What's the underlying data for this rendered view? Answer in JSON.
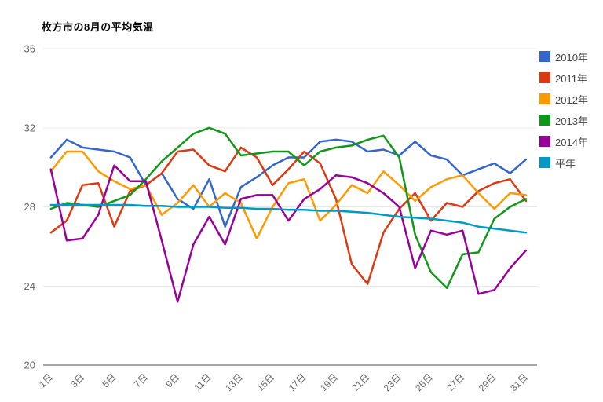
{
  "title": "枚方市の8月の平均気温",
  "chart_data": {
    "type": "line",
    "title": "枚方市の8月の平均気温",
    "xlabel": "",
    "ylabel": "",
    "x": [
      1,
      2,
      3,
      4,
      5,
      6,
      7,
      8,
      9,
      10,
      11,
      12,
      13,
      14,
      15,
      16,
      17,
      18,
      19,
      20,
      21,
      22,
      23,
      24,
      25,
      26,
      27,
      28,
      29,
      30,
      31
    ],
    "x_tick_labels": [
      "1日",
      "3日",
      "5日",
      "7日",
      "9日",
      "11日",
      "13日",
      "15日",
      "17日",
      "19日",
      "21日",
      "23日",
      "25日",
      "27日",
      "29日",
      "31日"
    ],
    "x_tick_days": [
      1,
      3,
      5,
      7,
      9,
      11,
      13,
      15,
      17,
      19,
      21,
      23,
      25,
      27,
      29,
      31
    ],
    "ylim": [
      20,
      36
    ],
    "y_ticks": [
      36,
      32,
      28,
      24,
      20
    ],
    "grid": true,
    "legend_position": "right",
    "series": [
      {
        "name": "2010年",
        "color": "#3366CC",
        "values": [
          30.5,
          31.4,
          31.0,
          30.9,
          30.8,
          30.5,
          29.1,
          29.7,
          28.4,
          27.9,
          29.4,
          27.0,
          29.0,
          29.5,
          30.1,
          30.5,
          30.5,
          31.3,
          31.4,
          31.3,
          30.8,
          30.9,
          30.6,
          31.3,
          30.6,
          30.4,
          29.6,
          29.9,
          30.2,
          29.7,
          30.4
        ]
      },
      {
        "name": "2011年",
        "color": "#DC3912",
        "values": [
          26.7,
          27.3,
          29.1,
          29.2,
          27.0,
          28.8,
          29.1,
          29.7,
          30.8,
          30.9,
          30.1,
          29.8,
          31.0,
          30.5,
          29.1,
          29.9,
          30.8,
          30.2,
          28.4,
          25.1,
          24.1,
          26.7,
          27.9,
          28.7,
          27.3,
          28.2,
          28.0,
          28.8,
          29.2,
          29.4,
          28.3
        ]
      },
      {
        "name": "2012年",
        "color": "#FF9900",
        "values": [
          29.8,
          30.8,
          30.8,
          29.8,
          29.3,
          28.9,
          29.1,
          27.6,
          28.2,
          29.1,
          28.0,
          28.7,
          28.2,
          26.4,
          28.0,
          29.2,
          29.4,
          27.3,
          28.1,
          29.1,
          28.7,
          29.8,
          29.1,
          28.3,
          29.0,
          29.4,
          29.6,
          28.7,
          27.9,
          28.7,
          28.6
        ]
      },
      {
        "name": "2013年",
        "color": "#109618",
        "values": [
          27.9,
          28.2,
          28.1,
          28.0,
          28.3,
          28.6,
          29.4,
          30.3,
          31.0,
          31.7,
          32.0,
          31.7,
          30.6,
          30.7,
          30.8,
          30.8,
          30.1,
          30.8,
          31.0,
          31.1,
          31.4,
          31.6,
          30.5,
          26.6,
          24.7,
          23.9,
          25.6,
          25.7,
          27.4,
          28.0,
          28.4
        ]
      },
      {
        "name": "2014年",
        "color": "#990099",
        "values": [
          29.9,
          26.3,
          26.4,
          27.6,
          30.1,
          29.3,
          29.3,
          26.3,
          23.2,
          26.1,
          27.5,
          26.1,
          28.4,
          28.6,
          28.6,
          27.3,
          28.4,
          28.9,
          29.6,
          29.5,
          29.2,
          28.7,
          28.0,
          24.9,
          26.8,
          26.6,
          26.8,
          23.6,
          23.8,
          24.9,
          25.8
        ]
      },
      {
        "name": "平年",
        "color": "#0099C6",
        "values": [
          28.1,
          28.1,
          28.1,
          28.1,
          28.1,
          28.1,
          28.05,
          28.05,
          28.0,
          28.0,
          28.0,
          27.95,
          27.95,
          27.9,
          27.9,
          27.85,
          27.85,
          27.8,
          27.8,
          27.75,
          27.7,
          27.6,
          27.5,
          27.45,
          27.4,
          27.3,
          27.2,
          27.0,
          26.9,
          26.8,
          26.7
        ]
      }
    ]
  },
  "legend": {
    "items": [
      {
        "label": "2010年",
        "color": "#3366CC"
      },
      {
        "label": "2011年",
        "color": "#DC3912"
      },
      {
        "label": "2012年",
        "color": "#FF9900"
      },
      {
        "label": "2013年",
        "color": "#109618"
      },
      {
        "label": "2014年",
        "color": "#990099"
      },
      {
        "label": "平年",
        "color": "#0099C6"
      }
    ]
  },
  "axis_colors": {
    "tick_label": "#666666",
    "gridline": "#e8e8e8",
    "baseline": "#a6a6a6"
  }
}
